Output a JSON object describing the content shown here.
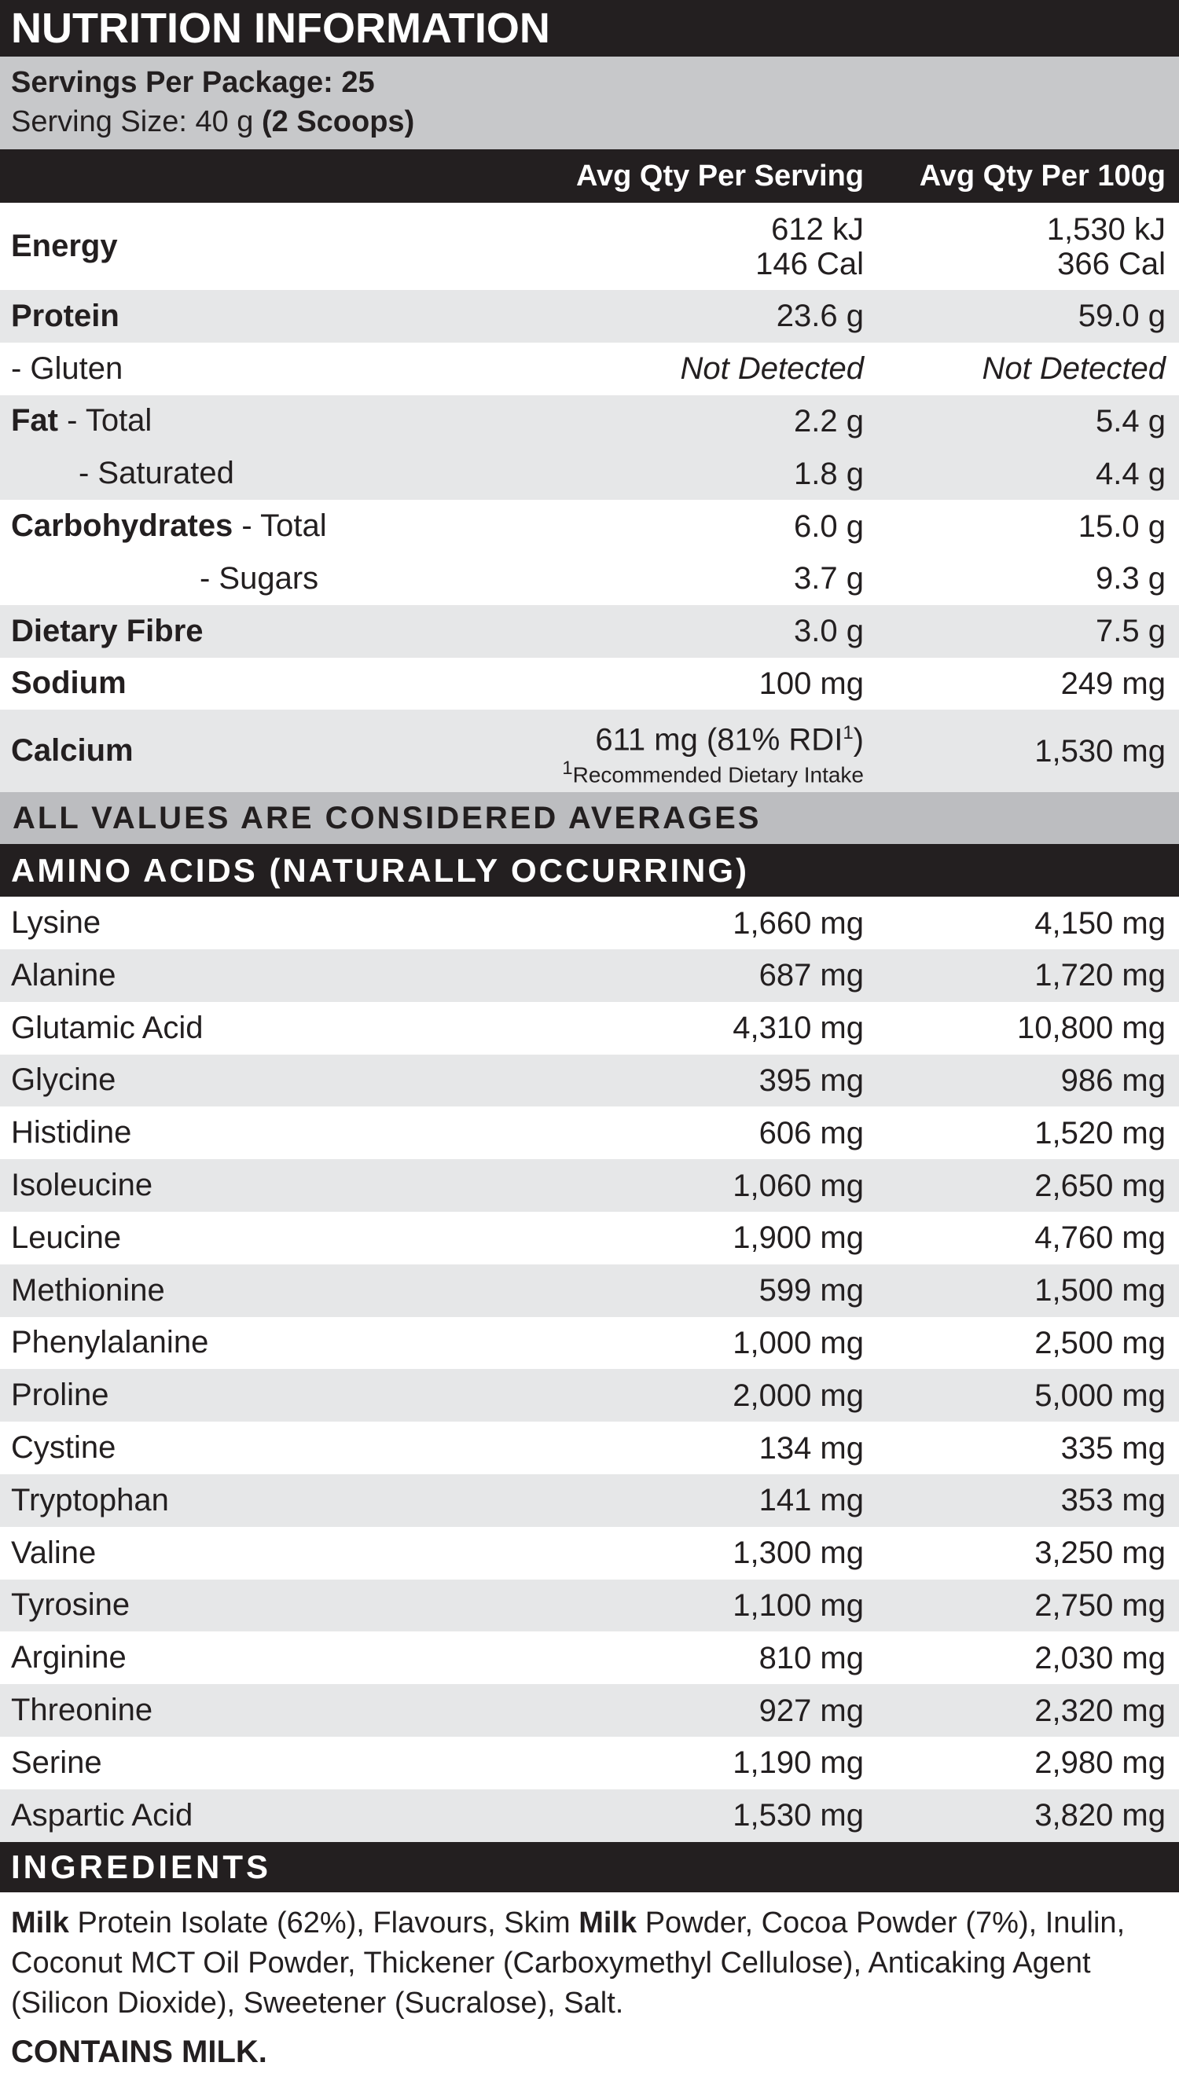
{
  "header": {
    "title": "NUTRITION INFORMATION"
  },
  "servings": {
    "per_package": "Servings Per Package: 25",
    "size": "Serving Size: 40 g ",
    "size_bold": "(2 Scoops)"
  },
  "columns": {
    "per_serving": "Avg Qty Per Serving",
    "per_100g": "Avg Qty Per 100g"
  },
  "nutrients": [
    {
      "name": "Energy",
      "per_serving": [
        "612 kJ",
        "146 Cal"
      ],
      "per_100g": [
        "1,530 kJ",
        "366 Cal"
      ]
    },
    {
      "name": "Protein",
      "per_serving": "23.6 g",
      "per_100g": "59.0 g"
    },
    {
      "qualifier": "- Gluten",
      "per_serving": "Not Detected",
      "per_100g": "Not Detected",
      "italic": true
    },
    {
      "name": "Fat",
      "qualifier": " - Total",
      "per_serving": "2.2 g",
      "per_100g": "5.4 g"
    },
    {
      "qualifier": "- Saturated",
      "level": 1,
      "per_serving": "1.8 g",
      "per_100g": "4.4 g"
    },
    {
      "name": "Carbohydrates",
      "qualifier": " - Total",
      "per_serving": "6.0 g",
      "per_100g": "15.0 g"
    },
    {
      "qualifier": "- Sugars",
      "level": 2,
      "per_serving": "3.7 g",
      "per_100g": "9.3 g"
    },
    {
      "name": "Dietary Fibre",
      "per_serving": "3.0 g",
      "per_100g": "7.5 g"
    },
    {
      "name": "Sodium",
      "per_serving": "100 mg",
      "per_100g": "249 mg"
    },
    {
      "name": "Calcium",
      "per_serving": {
        "text": "611 mg (81% RDI",
        "sup": "1",
        "close": ")",
        "note_mark": "1",
        "note": "Recommended Dietary Intake"
      },
      "per_100g": "1,530 mg"
    }
  ],
  "averages_note": "ALL VALUES ARE CONSIDERED AVERAGES",
  "amino_acids": {
    "title": "AMINO ACIDS (NATURALLY OCCURRING)",
    "rows": [
      [
        "Lysine",
        "1,660 mg",
        "4,150 mg"
      ],
      [
        "Alanine",
        "687 mg",
        "1,720 mg"
      ],
      [
        "Glutamic Acid",
        "4,310 mg",
        "10,800 mg"
      ],
      [
        "Glycine",
        "395 mg",
        "986 mg"
      ],
      [
        "Histidine",
        "606 mg",
        "1,520 mg"
      ],
      [
        "Isoleucine",
        "1,060 mg",
        "2,650 mg"
      ],
      [
        "Leucine",
        "1,900 mg",
        "4,760 mg"
      ],
      [
        "Methionine",
        "599 mg",
        "1,500 mg"
      ],
      [
        "Phenylalanine",
        "1,000 mg",
        "2,500 mg"
      ],
      [
        "Proline",
        "2,000 mg",
        "5,000 mg"
      ],
      [
        "Cystine",
        "134 mg",
        "335 mg"
      ],
      [
        "Tryptophan",
        "141 mg",
        "353 mg"
      ],
      [
        "Valine",
        "1,300 mg",
        "3,250 mg"
      ],
      [
        "Tyrosine",
        "1,100 mg",
        "2,750 mg"
      ],
      [
        "Arginine",
        "810 mg",
        "2,030 mg"
      ],
      [
        "Threonine",
        "927 mg",
        "2,320 mg"
      ],
      [
        "Serine",
        "1,190 mg",
        "2,980 mg"
      ],
      [
        "Aspartic Acid",
        "1,530 mg",
        "3,820 mg"
      ]
    ]
  },
  "ingredients": {
    "title": "INGREDIENTS",
    "text": [
      {
        "text": "Milk",
        "bold": true
      },
      {
        "text": " Protein Isolate (62%), Flavours, Skim "
      },
      {
        "text": "Milk",
        "bold": true
      },
      {
        "text": " Powder, Cocoa Powder (7%), Inulin, Coconut MCT Oil Powder, Thickener (Carboxymethyl Cellulose), Anticaking Agent (Silicon Dioxide), Sweetener (Sucralose), Salt."
      }
    ],
    "allergen": "CONTAINS MILK."
  }
}
